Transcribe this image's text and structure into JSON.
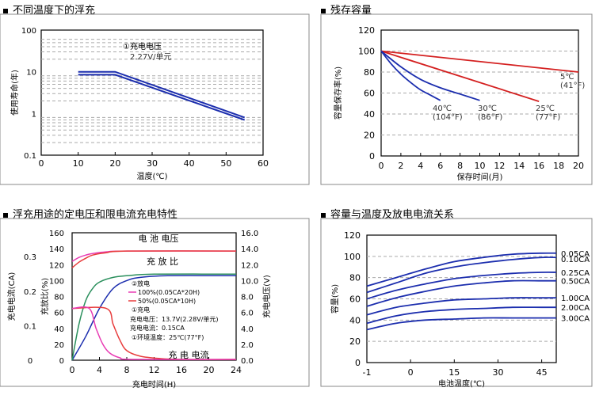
{
  "panels": [
    {
      "title": "不同温度下的浮充"
    },
    {
      "title": "残存容量"
    },
    {
      "title": "浮充用途的定电压和限电流充电特性"
    },
    {
      "title": "容量与温度及放电电流关系"
    }
  ],
  "chart_data": [
    {
      "type": "line",
      "title": "不同温度下的浮充",
      "xlabel": "温度(℃)",
      "ylabel": "使用寿命(年)",
      "xlim": [
        0,
        60
      ],
      "ylim": [
        0.1,
        100
      ],
      "yscale": "log",
      "xticks": [
        "0",
        "10",
        "20",
        "30",
        "40",
        "50",
        "60"
      ],
      "yticks": [
        "0.1",
        "1",
        "10",
        "100"
      ],
      "grid": true,
      "annotation": [
        "①充电电压",
        "2.27V/单元"
      ],
      "series": [
        {
          "x": [
            10,
            20,
            55
          ],
          "y": [
            10.0,
            10.0,
            0.8
          ]
        },
        {
          "x": [
            10,
            20,
            55
          ],
          "y": [
            8.5,
            8.5,
            0.7
          ]
        }
      ]
    },
    {
      "type": "line",
      "title": "残存容量",
      "xlabel": "保存时间(月)",
      "ylabel": "容量保存率(%)",
      "xlim": [
        0,
        20
      ],
      "ylim": [
        0,
        120
      ],
      "xticks": [
        "0",
        "2",
        "4",
        "6",
        "8",
        "10",
        "12",
        "14",
        "16",
        "18",
        "20"
      ],
      "yticks": [
        "0",
        "20",
        "40",
        "60",
        "80",
        "100",
        "120"
      ],
      "grid": true,
      "series": [
        {
          "name": "5℃\n(41°F)",
          "color": "#d42020",
          "x": [
            0,
            20
          ],
          "y": [
            100,
            80
          ]
        },
        {
          "name": "25℃\n(77°F)",
          "color": "#d42020",
          "x": [
            0,
            16
          ],
          "y": [
            100,
            52
          ]
        },
        {
          "name": "30℃\n(86°F)",
          "color": "#1c2eae",
          "x": [
            0,
            2,
            4,
            6,
            8,
            10
          ],
          "y": [
            100,
            85,
            73,
            65,
            59,
            53
          ]
        },
        {
          "name": "40℃\n(104°F)",
          "color": "#1c2eae",
          "x": [
            0,
            1,
            2,
            3,
            4,
            5,
            6
          ],
          "y": [
            100,
            88,
            78,
            70,
            63,
            58,
            53
          ]
        }
      ]
    },
    {
      "type": "line",
      "title": "浮充用途的定电压和限电流充电特性",
      "xlabel": "充电时间(H)",
      "ylabel_left_outer": "充电电流(CA)",
      "ylabel_left_inner": "充放比(%)",
      "ylabel_right": "充电电压(V)",
      "xlim": [
        0,
        24
      ],
      "xticks": [
        "0",
        "4",
        "8",
        "12",
        "16",
        "20",
        "24"
      ],
      "y_ratio_ticks": [
        "0",
        "20",
        "40",
        "60",
        "80",
        "100",
        "120",
        "140",
        "160"
      ],
      "y_current_ticks": [
        "0",
        "0.1",
        "0.2",
        "0.3"
      ],
      "y_voltage_ticks": [
        "0.0",
        "2.0",
        "4.0",
        "6.0",
        "8.0",
        "10.0",
        "12.0",
        "14.0",
        "16.0"
      ],
      "labels": {
        "voltage": "电 池 电压",
        "ratio": "充 放 比",
        "current": "充 电 电流"
      },
      "legend": [
        "②放电",
        "100%(0.05CA*20H)",
        "50%(0.05CA*10H)",
        "①充电",
        "充电电压：13.7V(2.28V/单元)",
        "充电电流：0.15CA",
        "①环境温度：25℃(77°F)"
      ],
      "series": [
        {
          "name": "电池电压 100%",
          "axis": "voltage",
          "color": "#e83cb4",
          "x": [
            0,
            1,
            2,
            3,
            5,
            8,
            24
          ],
          "y": [
            12.4,
            12.9,
            13.2,
            13.4,
            13.6,
            13.7,
            13.7
          ]
        },
        {
          "name": "电池电压 50%",
          "axis": "voltage",
          "color": "#e83c3c",
          "x": [
            0,
            1,
            2,
            3,
            5,
            8,
            24
          ],
          "y": [
            11.6,
            12.3,
            12.8,
            13.2,
            13.5,
            13.7,
            13.7
          ]
        },
        {
          "name": "充放比 100%",
          "axis": "ratio",
          "color": "#1c2eae",
          "x": [
            0,
            2,
            4,
            6,
            8,
            10,
            14,
            24
          ],
          "y": [
            0,
            30,
            65,
            90,
            100,
            104,
            106,
            106
          ]
        },
        {
          "name": "充放比 50%",
          "axis": "ratio",
          "color": "#2a8f5c",
          "x": [
            0,
            1,
            2,
            3,
            4,
            6,
            8,
            12,
            24
          ],
          "y": [
            0,
            45,
            75,
            90,
            98,
            104,
            106,
            108,
            108
          ]
        },
        {
          "name": "充电电流 100%",
          "axis": "ratio",
          "color": "#e83c3c",
          "x": [
            0,
            5,
            6,
            7,
            8,
            10,
            13,
            16,
            24
          ],
          "y": [
            65,
            65,
            45,
            25,
            12,
            5,
            2,
            1,
            1
          ]
        },
        {
          "name": "充电电流 50%",
          "axis": "ratio",
          "color": "#e83cb4",
          "x": [
            0,
            2.5,
            3.5,
            4.5,
            5.5,
            7,
            9,
            24
          ],
          "y": [
            65,
            65,
            40,
            20,
            9,
            3,
            1,
            1
          ]
        }
      ]
    },
    {
      "type": "line",
      "title": "容量与温度及放电电流关系",
      "xlabel": "电池温度(℃)",
      "ylabel": "容量(%)",
      "ylim": [
        0,
        120
      ],
      "xticks": [
        "-1",
        "0",
        "15",
        "30",
        "45"
      ],
      "yticks": [
        "0",
        "20",
        "40",
        "60",
        "80",
        "100",
        "120"
      ],
      "grid": true,
      "x": [
        -15,
        -5,
        5,
        15,
        25,
        35,
        45,
        50
      ],
      "series": [
        {
          "name": "0.05CA",
          "values": [
            72,
            80,
            88,
            95,
            99,
            102,
            103,
            103
          ]
        },
        {
          "name": "0.10CA",
          "values": [
            66,
            75,
            84,
            90,
            94,
            97,
            99,
            99
          ]
        },
        {
          "name": "0.25CA",
          "values": [
            60,
            68,
            74,
            79,
            82,
            84,
            85,
            85
          ]
        },
        {
          "name": "0.50CA",
          "values": [
            53,
            61,
            67,
            72,
            75,
            77,
            77,
            77
          ]
        },
        {
          "name": "1.00CA",
          "values": [
            45,
            52,
            56,
            59,
            60,
            61,
            61,
            61
          ]
        },
        {
          "name": "2.00CA",
          "values": [
            37,
            44,
            48,
            50,
            51,
            52,
            52,
            52
          ]
        },
        {
          "name": "3.00CA",
          "values": [
            31,
            37,
            40,
            41,
            42,
            42,
            42,
            42
          ]
        }
      ]
    }
  ]
}
